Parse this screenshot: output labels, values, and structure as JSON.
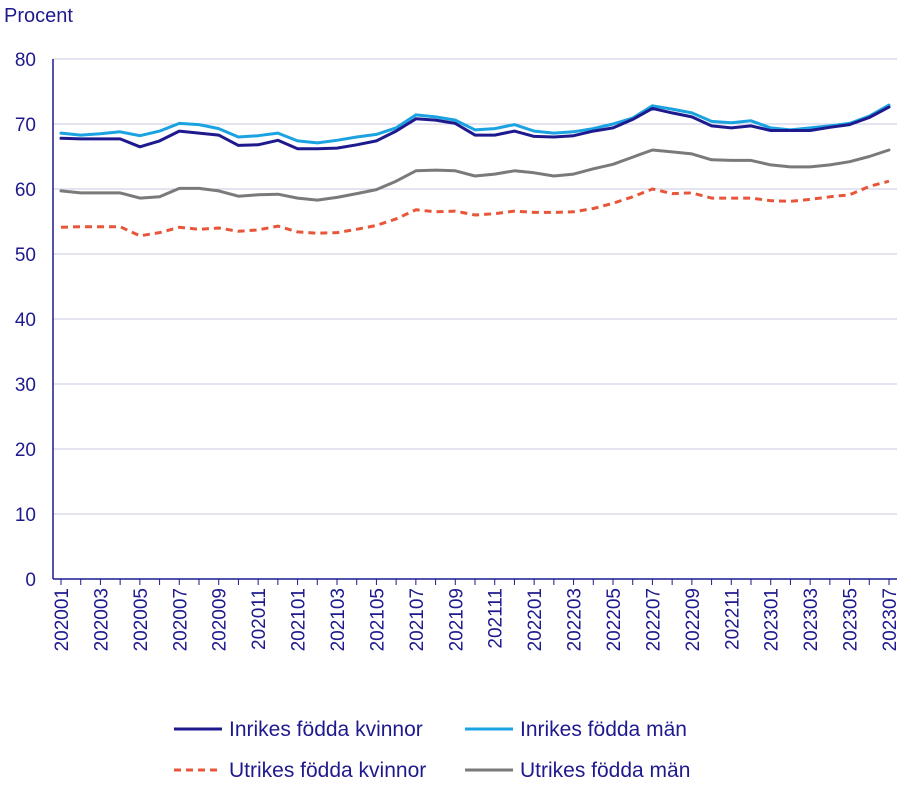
{
  "chart_data": {
    "type": "line",
    "ylabel": "Procent",
    "ylim": [
      0,
      80
    ],
    "yticks": [
      0,
      10,
      20,
      30,
      40,
      50,
      60,
      70,
      80
    ],
    "grid": true,
    "legend_position": "bottom",
    "x": [
      "202001",
      "202002",
      "202003",
      "202004",
      "202005",
      "202006",
      "202007",
      "202008",
      "202009",
      "202010",
      "202011",
      "202012",
      "202101",
      "202102",
      "202103",
      "202104",
      "202105",
      "202106",
      "202107",
      "202108",
      "202109",
      "202110",
      "202111",
      "202112",
      "202201",
      "202202",
      "202203",
      "202204",
      "202205",
      "202206",
      "202207",
      "202208",
      "202209",
      "202210",
      "202211",
      "202212",
      "202301",
      "202302",
      "202303",
      "202304",
      "202305",
      "202306",
      "202307"
    ],
    "x_tick_labels": [
      "202001",
      "202003",
      "202005",
      "202007",
      "202009",
      "202011",
      "202101",
      "202103",
      "202105",
      "202107",
      "202109",
      "202111",
      "202201",
      "202203",
      "202205",
      "202207",
      "202209",
      "202211",
      "202301",
      "202303",
      "202305",
      "202307"
    ],
    "series": [
      {
        "name": "Inrikes födda kvinnor",
        "color": "#1e1a8e",
        "dash": false,
        "values": [
          67.8,
          67.7,
          67.7,
          67.7,
          66.5,
          67.4,
          68.9,
          68.6,
          68.3,
          66.7,
          66.8,
          67.5,
          66.2,
          66.2,
          66.3,
          66.8,
          67.4,
          68.9,
          70.8,
          70.6,
          70.1,
          68.3,
          68.3,
          68.9,
          68.1,
          68.0,
          68.2,
          68.9,
          69.4,
          70.7,
          72.4,
          71.7,
          71.1,
          69.7,
          69.4,
          69.7,
          69.0,
          69.0,
          69.0,
          69.5,
          69.9,
          71.0,
          72.6
        ]
      },
      {
        "name": "Inrikes födda män",
        "color": "#1aa3e0",
        "dash": false,
        "values": [
          68.6,
          68.3,
          68.5,
          68.8,
          68.2,
          68.9,
          70.1,
          69.9,
          69.3,
          68.0,
          68.2,
          68.6,
          67.4,
          67.1,
          67.5,
          68.0,
          68.4,
          69.4,
          71.4,
          71.1,
          70.6,
          69.1,
          69.3,
          69.9,
          68.9,
          68.6,
          68.8,
          69.3,
          70.0,
          70.9,
          72.8,
          72.3,
          71.7,
          70.4,
          70.2,
          70.5,
          69.4,
          69.1,
          69.4,
          69.7,
          70.1,
          71.2,
          72.9
        ]
      },
      {
        "name": "Utrikes födda kvinnor",
        "color": "#e8563a",
        "dash": true,
        "values": [
          54.1,
          54.2,
          54.2,
          54.2,
          52.8,
          53.3,
          54.1,
          53.8,
          54.0,
          53.5,
          53.7,
          54.3,
          53.4,
          53.2,
          53.3,
          53.8,
          54.4,
          55.4,
          56.8,
          56.5,
          56.6,
          56.0,
          56.2,
          56.6,
          56.4,
          56.4,
          56.5,
          57.0,
          57.8,
          58.8,
          60.0,
          59.3,
          59.4,
          58.6,
          58.6,
          58.6,
          58.2,
          58.1,
          58.4,
          58.8,
          59.1,
          60.4,
          61.2
        ]
      },
      {
        "name": "Utrikes födda män",
        "color": "#7a7a7a",
        "dash": false,
        "values": [
          59.7,
          59.4,
          59.4,
          59.4,
          58.6,
          58.8,
          60.1,
          60.1,
          59.7,
          58.9,
          59.1,
          59.2,
          58.6,
          58.3,
          58.7,
          59.3,
          59.9,
          61.2,
          62.8,
          62.9,
          62.8,
          62.0,
          62.3,
          62.8,
          62.5,
          62.0,
          62.3,
          63.1,
          63.8,
          64.9,
          66.0,
          65.7,
          65.4,
          64.5,
          64.4,
          64.4,
          63.7,
          63.4,
          63.4,
          63.7,
          64.2,
          65.0,
          66.0
        ]
      }
    ]
  }
}
